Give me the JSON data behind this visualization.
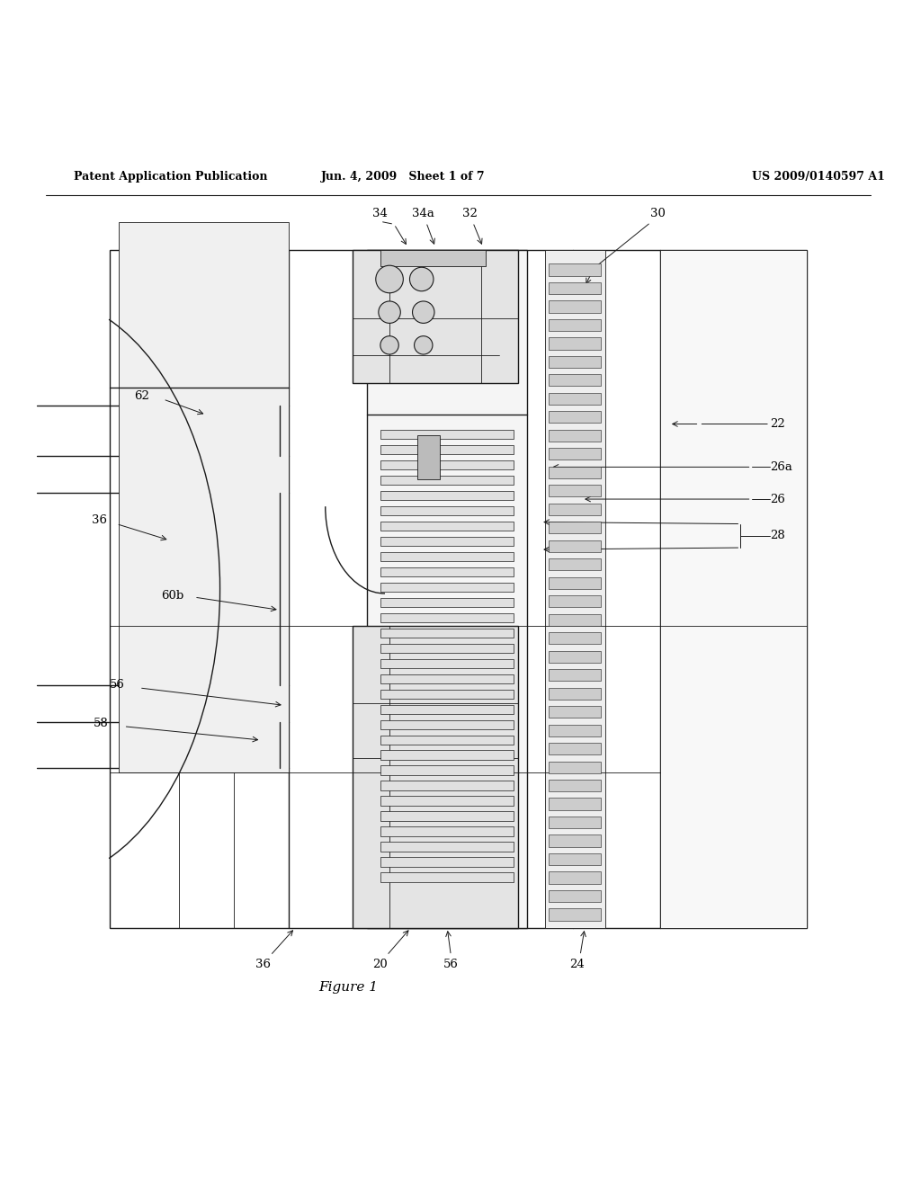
{
  "background_color": "#ffffff",
  "header_left": "Patent Application Publication",
  "header_center": "Jun. 4, 2009   Sheet 1 of 7",
  "header_right": "US 2009/0140597 A1",
  "caption": "Figure 1",
  "black": "#1a1a1a",
  "gray_light": "#e8e8e8",
  "gray_mid": "#d0d0d0",
  "lw_main": 1.0,
  "lw_thin": 0.6,
  "lw_ann": 0.7,
  "fs_label": 9.5,
  "fs_header": 9,
  "fs_caption": 11
}
